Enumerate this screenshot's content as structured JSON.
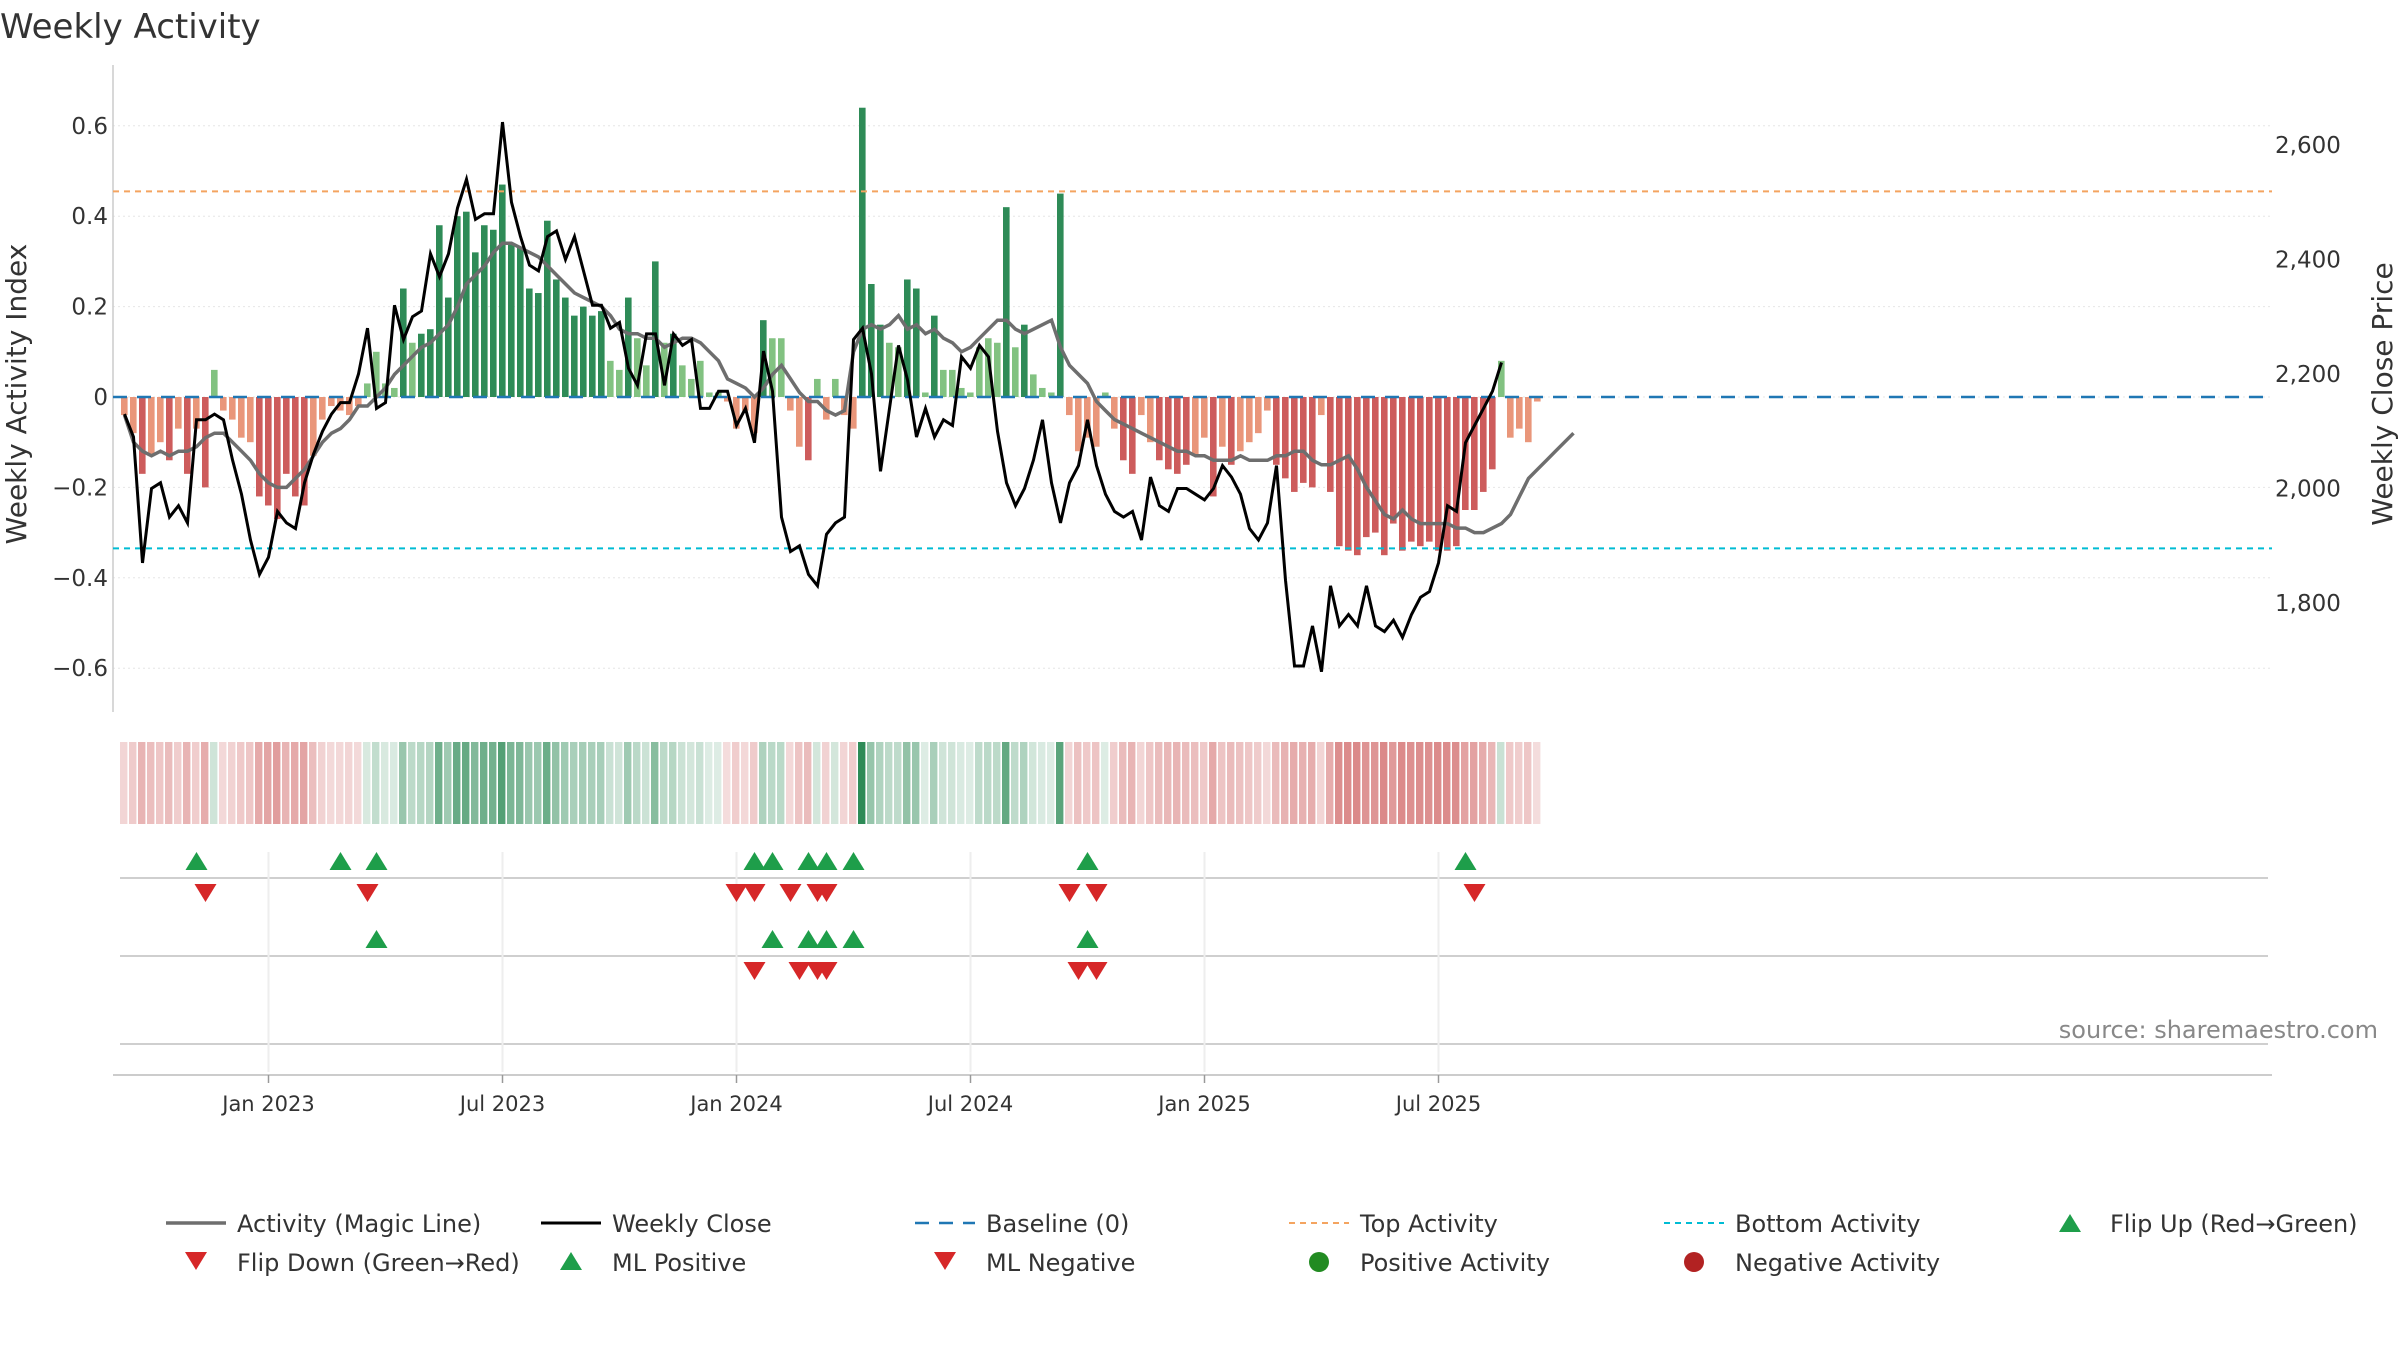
{
  "colors": {
    "pos_strong": "#2e8b57",
    "pos_light": "#82c281",
    "neg_strong": "#cd5c5c",
    "neg_light": "#e9967a",
    "magic_line": "#6e6e6e",
    "weekly_close": "#000000",
    "baseline": "#1f77b4",
    "top_activity": "#f4a460",
    "bottom_activity": "#00bcd4",
    "flip_up": "#1e9e4a",
    "flip_down": "#d62728",
    "pos_dot": "#228b22",
    "neg_dot": "#b22222"
  },
  "chart_data": {
    "type": "bar+line",
    "title": "Weekly Activity",
    "ylabel": "Weekly Activity Index",
    "y2label": "Weekly Close Price",
    "ylim": [
      -0.7,
      0.7
    ],
    "y2lim": [
      1600,
      2700
    ],
    "yticks": [
      -0.6,
      -0.4,
      -0.2,
      0,
      0.2,
      0.4,
      0.6
    ],
    "ytick_labels": [
      "−0.6",
      "−0.4",
      "−0.2",
      "0",
      "0.2",
      "0.4",
      "0.6"
    ],
    "y2ticks": [
      1800,
      2000,
      2200,
      2400,
      2600
    ],
    "y2tick_labels": [
      "1,800",
      "2,000",
      "2,200",
      "2,400",
      "2,600"
    ],
    "x_start": "2022-09-12",
    "x_end": "2025-09-01",
    "week_count": 156,
    "xticks": [
      {
        "label": "Jan 2023",
        "week": 16
      },
      {
        "label": "Jul 2023",
        "week": 42
      },
      {
        "label": "Jan 2024",
        "week": 68
      },
      {
        "label": "Jul 2024",
        "week": 94
      },
      {
        "label": "Jan 2025",
        "week": 120
      },
      {
        "label": "Jul 2025",
        "week": 146
      }
    ],
    "top_activity": 0.455,
    "bottom_activity": -0.335,
    "activity": [
      -0.04,
      -0.08,
      -0.17,
      -0.13,
      -0.1,
      -0.14,
      -0.07,
      -0.17,
      -0.07,
      -0.2,
      0.06,
      -0.03,
      -0.05,
      -0.09,
      -0.1,
      -0.22,
      -0.24,
      -0.27,
      -0.17,
      -0.22,
      -0.24,
      -0.13,
      -0.05,
      -0.02,
      -0.03,
      -0.04,
      -0.02,
      0.03,
      0.1,
      0.03,
      0.02,
      0.24,
      0.12,
      0.14,
      0.15,
      0.38,
      0.22,
      0.4,
      0.41,
      0.32,
      0.38,
      0.37,
      0.47,
      0.34,
      0.33,
      0.24,
      0.23,
      0.39,
      0.26,
      0.22,
      0.18,
      0.2,
      0.18,
      0.19,
      0.08,
      0.06,
      0.22,
      0.13,
      0.07,
      0.3,
      0.12,
      0.14,
      0.07,
      0.04,
      0.08,
      0.01,
      0.01,
      -0.01,
      -0.07,
      -0.03,
      -0.08,
      0.17,
      0.13,
      0.13,
      -0.03,
      -0.11,
      -0.14,
      0.04,
      -0.05,
      0.04,
      -0.04,
      -0.07,
      0.64,
      0.25,
      0.16,
      0.12,
      0.11,
      0.26,
      0.24,
      0.01,
      0.18,
      0.06,
      0.06,
      0.02,
      0.01,
      0.11,
      0.13,
      0.12,
      0.42,
      0.11,
      0.16,
      0.05,
      0.02,
      0.01,
      0.45,
      -0.04,
      -0.12,
      -0.09,
      -0.11,
      0.01,
      -0.07,
      -0.14,
      -0.17,
      -0.04,
      -0.1,
      -0.14,
      -0.16,
      -0.17,
      -0.15,
      -0.13,
      -0.09,
      -0.22,
      -0.11,
      -0.15,
      -0.12,
      -0.1,
      -0.08,
      -0.03,
      -0.15,
      -0.18,
      -0.21,
      -0.19,
      -0.2,
      -0.04,
      -0.21,
      -0.33,
      -0.34,
      -0.35,
      -0.31,
      -0.3,
      -0.35,
      -0.28,
      -0.34,
      -0.32,
      -0.33,
      -0.32,
      -0.34,
      -0.34,
      -0.33,
      -0.25,
      -0.25,
      -0.21,
      -0.16,
      0.08,
      -0.09,
      -0.07,
      -0.1,
      -0.01
    ],
    "magic_line": [
      -0.04,
      -0.1,
      -0.12,
      -0.13,
      -0.12,
      -0.13,
      -0.12,
      -0.12,
      -0.11,
      -0.09,
      -0.08,
      -0.08,
      -0.1,
      -0.12,
      -0.14,
      -0.17,
      -0.19,
      -0.2,
      -0.2,
      -0.18,
      -0.16,
      -0.13,
      -0.1,
      -0.08,
      -0.07,
      -0.05,
      -0.02,
      -0.02,
      0.0,
      0.02,
      0.05,
      0.07,
      0.09,
      0.11,
      0.12,
      0.14,
      0.16,
      0.2,
      0.25,
      0.27,
      0.29,
      0.32,
      0.34,
      0.34,
      0.33,
      0.32,
      0.31,
      0.29,
      0.27,
      0.25,
      0.23,
      0.22,
      0.21,
      0.2,
      0.18,
      0.15,
      0.14,
      0.14,
      0.13,
      0.13,
      0.11,
      0.12,
      0.13,
      0.13,
      0.12,
      0.1,
      0.08,
      0.04,
      0.03,
      0.02,
      0.0,
      0.02,
      0.05,
      0.07,
      0.04,
      0.01,
      -0.01,
      -0.01,
      -0.03,
      -0.04,
      -0.03,
      0.1,
      0.15,
      0.16,
      0.15,
      0.16,
      0.18,
      0.15,
      0.16,
      0.14,
      0.15,
      0.13,
      0.12,
      0.1,
      0.11,
      0.13,
      0.15,
      0.17,
      0.17,
      0.15,
      0.14,
      0.15,
      0.16,
      0.17,
      0.11,
      0.07,
      0.05,
      0.03,
      -0.01,
      -0.03,
      -0.05,
      -0.06,
      -0.07,
      -0.08,
      -0.09,
      -0.1,
      -0.11,
      -0.12,
      -0.12,
      -0.13,
      -0.13,
      -0.14,
      -0.14,
      -0.14,
      -0.13,
      -0.14,
      -0.14,
      -0.14,
      -0.13,
      -0.13,
      -0.12,
      -0.12,
      -0.14,
      -0.15,
      -0.15,
      -0.14,
      -0.13,
      -0.16,
      -0.2,
      -0.23,
      -0.26,
      -0.27,
      -0.25,
      -0.27,
      -0.28,
      -0.28,
      -0.28,
      -0.28,
      -0.29,
      -0.29,
      -0.3,
      -0.3,
      -0.29,
      -0.28,
      -0.26,
      -0.22,
      -0.18,
      -0.16,
      -0.14,
      -0.12,
      -0.1,
      -0.08
    ],
    "weekly_close": [
      2130,
      2090,
      1870,
      2000,
      2010,
      1950,
      1970,
      1940,
      2120,
      2120,
      2130,
      2120,
      2050,
      1990,
      1910,
      1850,
      1880,
      1960,
      1940,
      1930,
      2010,
      2060,
      2100,
      2130,
      2150,
      2150,
      2200,
      2280,
      2140,
      2150,
      2320,
      2260,
      2300,
      2310,
      2410,
      2370,
      2410,
      2490,
      2540,
      2470,
      2480,
      2480,
      2640,
      2500,
      2440,
      2390,
      2380,
      2440,
      2450,
      2400,
      2440,
      2380,
      2320,
      2320,
      2280,
      2290,
      2210,
      2180,
      2270,
      2270,
      2180,
      2270,
      2250,
      2260,
      2140,
      2140,
      2170,
      2170,
      2110,
      2140,
      2080,
      2240,
      2170,
      1950,
      1890,
      1900,
      1850,
      1830,
      1920,
      1940,
      1950,
      2260,
      2280,
      2200,
      2030,
      2140,
      2250,
      2190,
      2090,
      2140,
      2090,
      2120,
      2110,
      2230,
      2210,
      2250,
      2230,
      2100,
      2010,
      1970,
      2000,
      2050,
      2120,
      2010,
      1940,
      2010,
      2040,
      2120,
      2040,
      1990,
      1960,
      1950,
      1960,
      1910,
      2020,
      1970,
      1960,
      2000,
      2000,
      1990,
      1980,
      2000,
      2040,
      2020,
      1990,
      1930,
      1910,
      1940,
      2040,
      1840,
      1690,
      1690,
      1760,
      1680,
      1830,
      1760,
      1780,
      1760,
      1830,
      1760,
      1750,
      1770,
      1740,
      1780,
      1810,
      1820,
      1870,
      1970,
      1960,
      2080,
      2110,
      2140,
      2170,
      2220
    ]
  },
  "source_text": "source: sharemaestro.com",
  "markers": {
    "flip_up": [
      8,
      24,
      28,
      70,
      72,
      76,
      78,
      81,
      107,
      149
    ],
    "flip_down": [
      9,
      27,
      68,
      70,
      74,
      77,
      78,
      105,
      108,
      150
    ],
    "ml_positive": [
      28,
      72,
      76,
      78,
      81,
      107
    ],
    "ml_negative": [
      70,
      75,
      77,
      78,
      106,
      108
    ]
  },
  "legend": {
    "magic_line": "Activity (Magic Line)",
    "weekly_close": "Weekly Close",
    "baseline": "Baseline (0)",
    "top_activity": "Top Activity",
    "bottom_activity": "Bottom Activity",
    "flip_up": "Flip Up (Red→Green)",
    "flip_down": "Flip Down (Green→Red)",
    "ml_positive": "ML Positive",
    "ml_negative": "ML Negative",
    "positive_activity": "Positive Activity",
    "negative_activity": "Negative Activity"
  }
}
